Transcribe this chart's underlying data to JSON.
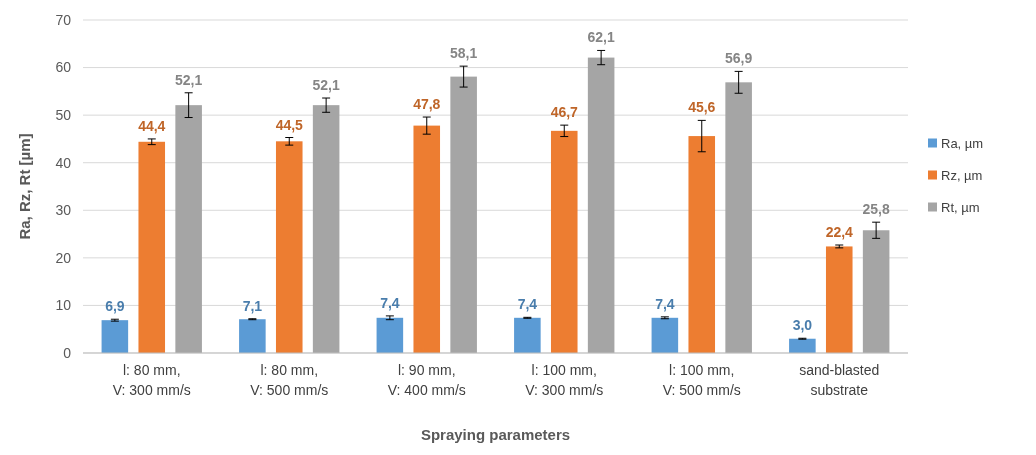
{
  "chart_data": {
    "type": "bar",
    "xlabel": "Spraying parameters",
    "ylabel": "Ra, Rz, Rt [µm]",
    "categories": [
      "l: 80 mm,\nV: 300 mm/s",
      "l: 80 mm,\nV: 500 mm/s",
      "l: 90 mm,\nV: 400 mm/s",
      "l: 100 mm,\nV: 300 mm/s",
      "l: 100 mm,\nV: 500 mm/s",
      "sand-blasted\nsubstrate"
    ],
    "series": [
      {
        "name": "Ra, µm",
        "color": "#5b9bd5",
        "values": [
          6.9,
          7.1,
          7.4,
          7.4,
          7.4,
          3.0
        ],
        "errors": [
          0.2,
          0.1,
          0.4,
          0.1,
          0.2,
          0.1
        ],
        "value_labels": [
          "6,9",
          "7,1",
          "7,4",
          "7,4",
          "7,4",
          "3,0"
        ]
      },
      {
        "name": "Rz, µm",
        "color": "#ed7d31",
        "values": [
          44.4,
          44.5,
          47.8,
          46.7,
          45.6,
          22.4
        ],
        "errors": [
          0.6,
          0.8,
          1.8,
          1.2,
          3.3,
          0.3
        ],
        "value_labels": [
          "44,4",
          "44,5",
          "47,8",
          "46,7",
          "45,6",
          "22,4"
        ]
      },
      {
        "name": "Rt, µm",
        "color": "#a5a5a5",
        "values": [
          52.1,
          52.1,
          58.1,
          62.1,
          56.9,
          25.8
        ],
        "errors": [
          2.6,
          1.5,
          2.2,
          1.5,
          2.3,
          1.7
        ],
        "value_labels": [
          "52,1",
          "52,1",
          "58,1",
          "62,1",
          "56,9",
          "25,8"
        ]
      }
    ],
    "ylim": [
      0,
      70
    ],
    "yticks": [
      0,
      10,
      20,
      30,
      40,
      50,
      60,
      70
    ],
    "grid": "y",
    "legend": "right"
  }
}
